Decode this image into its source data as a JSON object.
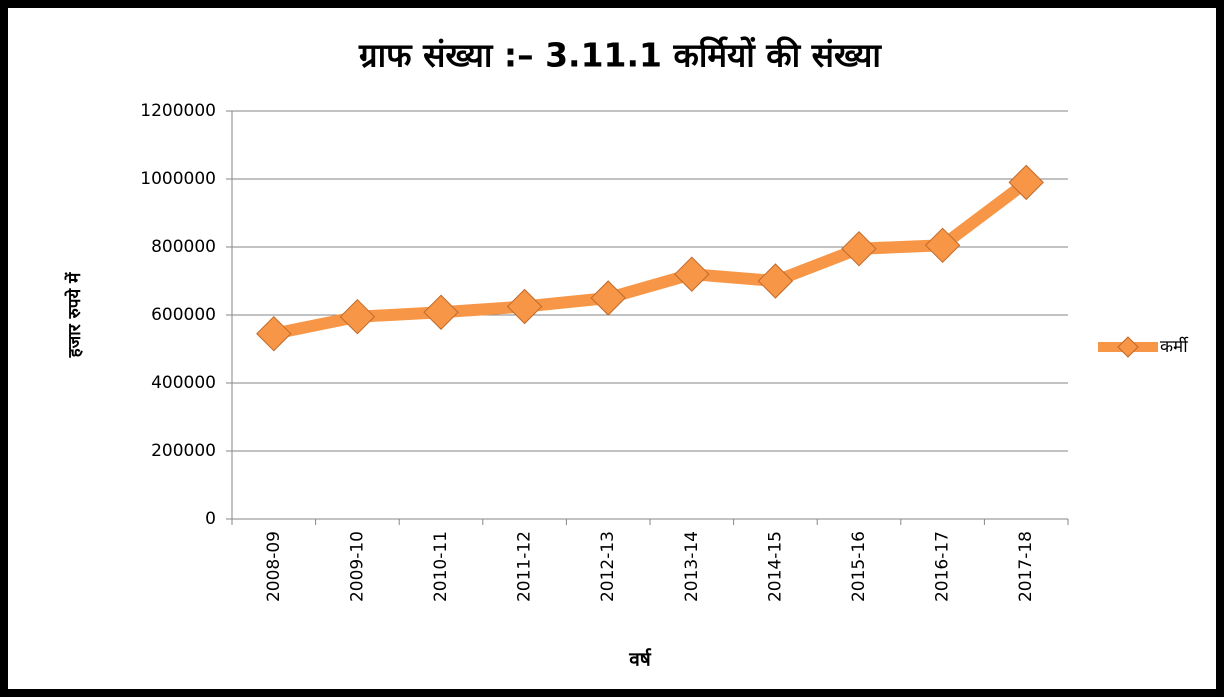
{
  "chart_data": {
    "type": "line",
    "title": "ग्राफ संख्या :– 3.11.1   कर्मियों की संख्या",
    "y_label": "हजार रुपये में",
    "x_label": "वर्ष",
    "categories": [
      "2008-09",
      "2009-10",
      "2010-11",
      "2011-12",
      "2012-13",
      "2013-14",
      "2014-15",
      "2015-16",
      "2016-17",
      "2017-18"
    ],
    "series": [
      {
        "name": "कर्मी",
        "color": "#f79646",
        "values": [
          545000,
          595000,
          608000,
          625000,
          650000,
          720000,
          700000,
          795000,
          805000,
          990000
        ]
      }
    ],
    "ylim": [
      0,
      1200000
    ],
    "yticks": [
      0,
      200000,
      400000,
      600000,
      800000,
      1000000,
      1200000
    ],
    "grid": true,
    "legend": "right"
  }
}
